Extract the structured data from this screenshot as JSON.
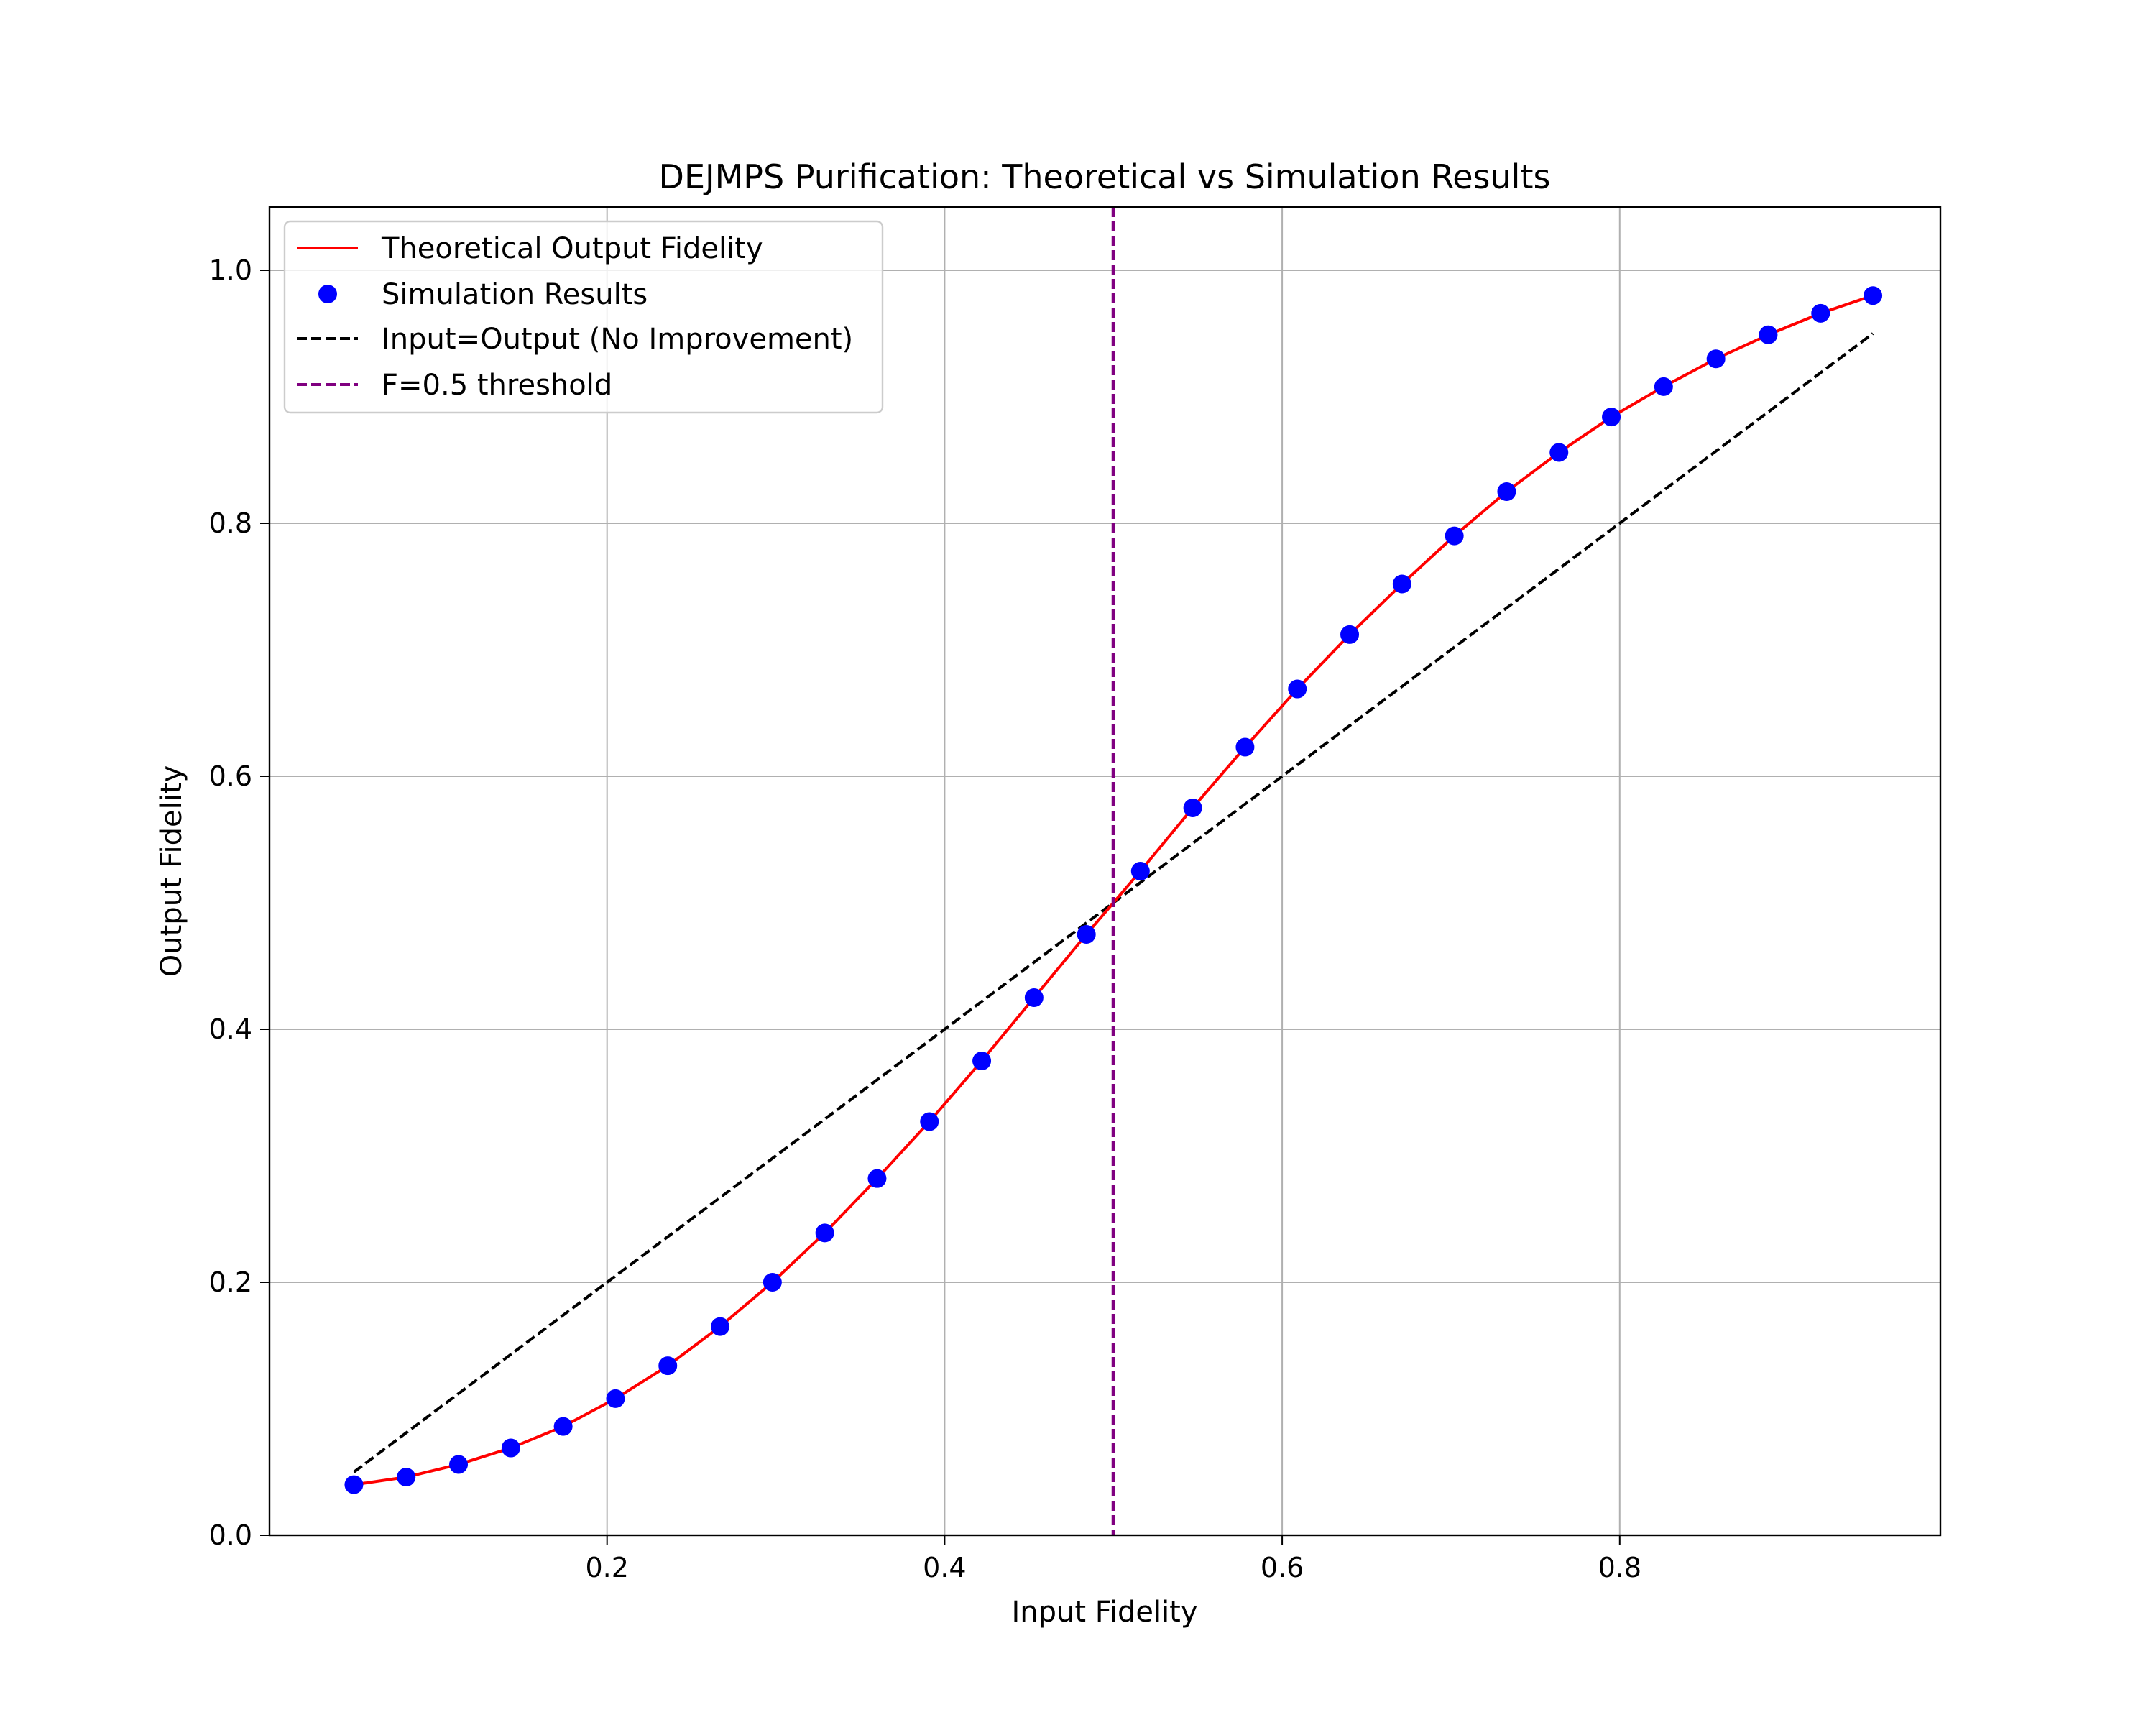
{
  "chart_data": {
    "type": "line",
    "title": "DEJMPS Purification: Theoretical vs Simulation Results",
    "xlabel": "Input Fidelity",
    "ylabel": "Output Fidelity",
    "xlim": [
      0.0,
      0.99
    ],
    "ylim": [
      0.0,
      1.05
    ],
    "xticks": [
      0.2,
      0.4,
      0.6,
      0.8
    ],
    "xtick_labels": [
      "0.2",
      "0.4",
      "0.6",
      "0.8"
    ],
    "yticks": [
      0.0,
      0.2,
      0.4,
      0.6,
      0.8,
      1.0
    ],
    "ytick_labels": [
      "0.0",
      "0.2",
      "0.4",
      "0.6",
      "0.8",
      "1.0"
    ],
    "grid": true,
    "legend_position": "top-left",
    "series": [
      {
        "name": "Theoretical Output Fidelity",
        "kind": "line",
        "color": "#ff0000",
        "x": [
          0.05,
          0.081,
          0.112,
          0.143,
          0.174,
          0.205,
          0.236,
          0.267,
          0.298,
          0.329,
          0.36,
          0.391,
          0.422,
          0.453,
          0.484,
          0.516,
          0.547,
          0.578,
          0.609,
          0.64,
          0.671,
          0.702,
          0.733,
          0.764,
          0.795,
          0.826,
          0.857,
          0.888,
          0.919,
          0.95
        ],
        "y": [
          0.04,
          0.046,
          0.056,
          0.069,
          0.086,
          0.108,
          0.134,
          0.165,
          0.2,
          0.239,
          0.282,
          0.327,
          0.375,
          0.425,
          0.475,
          0.525,
          0.575,
          0.623,
          0.669,
          0.712,
          0.752,
          0.79,
          0.825,
          0.856,
          0.884,
          0.908,
          0.93,
          0.949,
          0.966,
          0.98
        ]
      },
      {
        "name": "Simulation Results",
        "kind": "scatter",
        "color": "#0000ff",
        "x": [
          0.05,
          0.081,
          0.112,
          0.143,
          0.174,
          0.205,
          0.236,
          0.267,
          0.298,
          0.329,
          0.36,
          0.391,
          0.422,
          0.453,
          0.484,
          0.516,
          0.547,
          0.578,
          0.609,
          0.64,
          0.671,
          0.702,
          0.733,
          0.764,
          0.795,
          0.826,
          0.857,
          0.888,
          0.919,
          0.95
        ],
        "y": [
          0.04,
          0.046,
          0.056,
          0.069,
          0.086,
          0.108,
          0.134,
          0.165,
          0.2,
          0.239,
          0.282,
          0.327,
          0.375,
          0.425,
          0.475,
          0.525,
          0.575,
          0.623,
          0.669,
          0.712,
          0.752,
          0.79,
          0.825,
          0.856,
          0.884,
          0.908,
          0.93,
          0.949,
          0.966,
          0.98
        ]
      },
      {
        "name": "Input=Output (No Improvement)",
        "kind": "dashed-line",
        "color": "#000000",
        "x": [
          0.05,
          0.95
        ],
        "y": [
          0.05,
          0.95
        ]
      },
      {
        "name": "F=0.5 threshold",
        "kind": "vertical-dashed-line",
        "color": "#800080",
        "x": [
          0.5
        ]
      }
    ]
  }
}
